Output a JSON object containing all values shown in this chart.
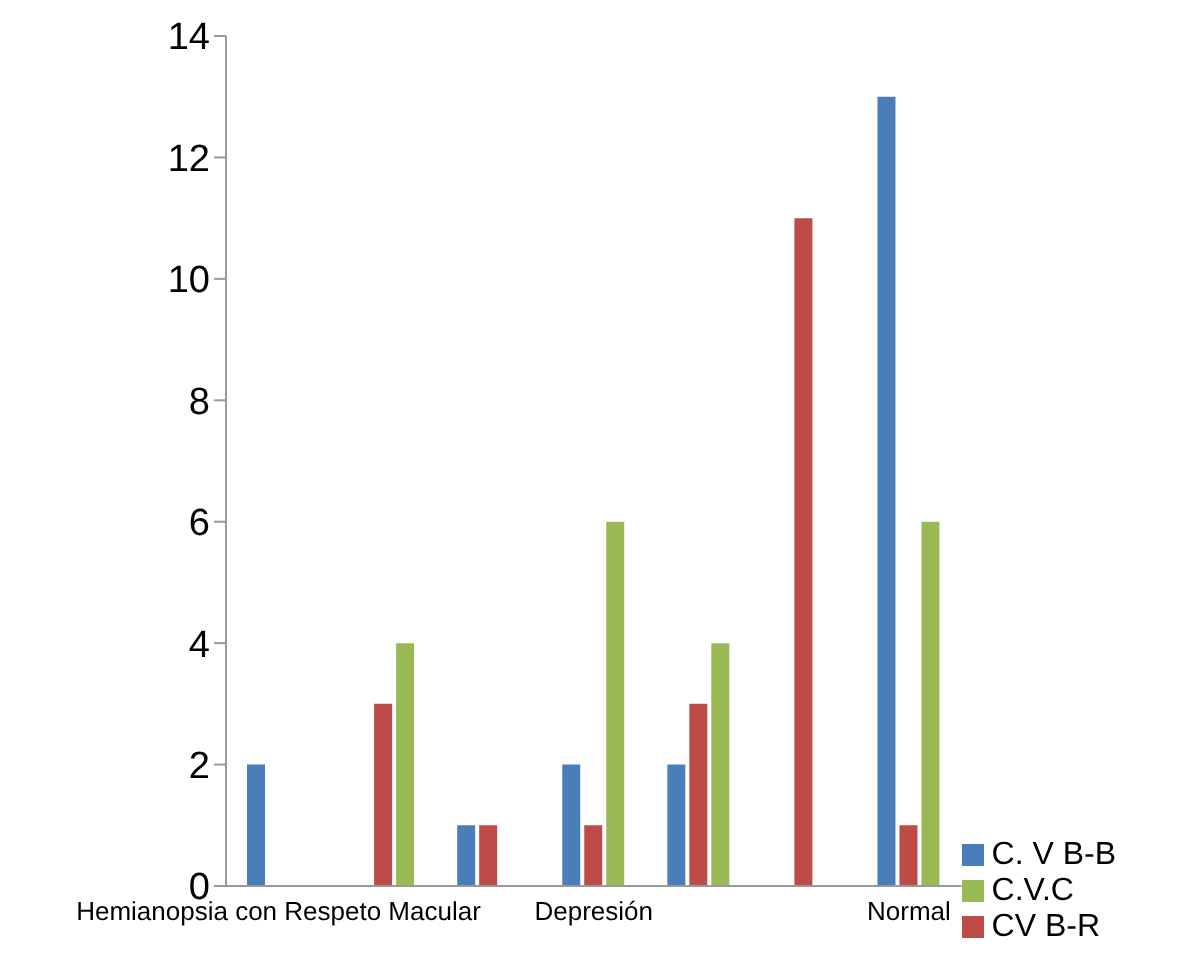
{
  "chart_data": {
    "type": "bar",
    "categories": [
      "Hemianopsia con Respeto Macular",
      null,
      null,
      "Depresión",
      null,
      null,
      "Normal"
    ],
    "series": [
      {
        "name": "C. V B-B",
        "color": "#4a7ebb",
        "values": [
          2,
          null,
          1,
          2,
          2,
          null,
          13
        ]
      },
      {
        "name": "CV B-R",
        "color": "#be4b48",
        "values": [
          null,
          3,
          1,
          1,
          3,
          11,
          1
        ]
      },
      {
        "name": "C.V.C",
        "color": "#98b954",
        "values": [
          null,
          4,
          null,
          6,
          4,
          null,
          6
        ]
      }
    ],
    "ylim": [
      0,
      14
    ],
    "yticks": [
      0,
      2,
      4,
      6,
      8,
      10,
      12,
      14
    ],
    "grid": false,
    "legend": "bottom right"
  }
}
